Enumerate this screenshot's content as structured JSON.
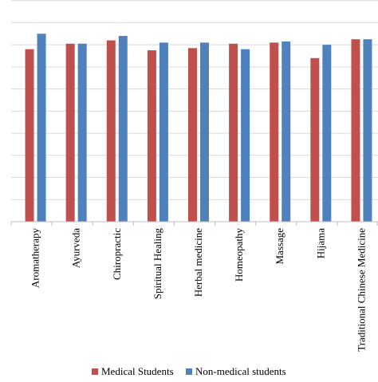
{
  "chart_data": {
    "type": "bar",
    "categories": [
      "Aromatherapy",
      "Ayurveda",
      "Chiropractic",
      "Spiritual Healing",
      "Herbal medicine",
      "Homeopathy",
      "Massage",
      "Hijama",
      "Traditional Chinese Medicine"
    ],
    "series": [
      {
        "name": "Medical Students",
        "color": "#c0504d",
        "values": [
          78,
          80.5,
          82,
          77.5,
          78.5,
          80.5,
          81,
          74,
          82.5
        ]
      },
      {
        "name": "Non-medical students",
        "color": "#4f81bd",
        "values": [
          85,
          80.5,
          84,
          81,
          81,
          78,
          81.5,
          80,
          82.5
        ]
      }
    ],
    "ylim": [
      0,
      100
    ],
    "grid": true,
    "legend": "bottom"
  }
}
